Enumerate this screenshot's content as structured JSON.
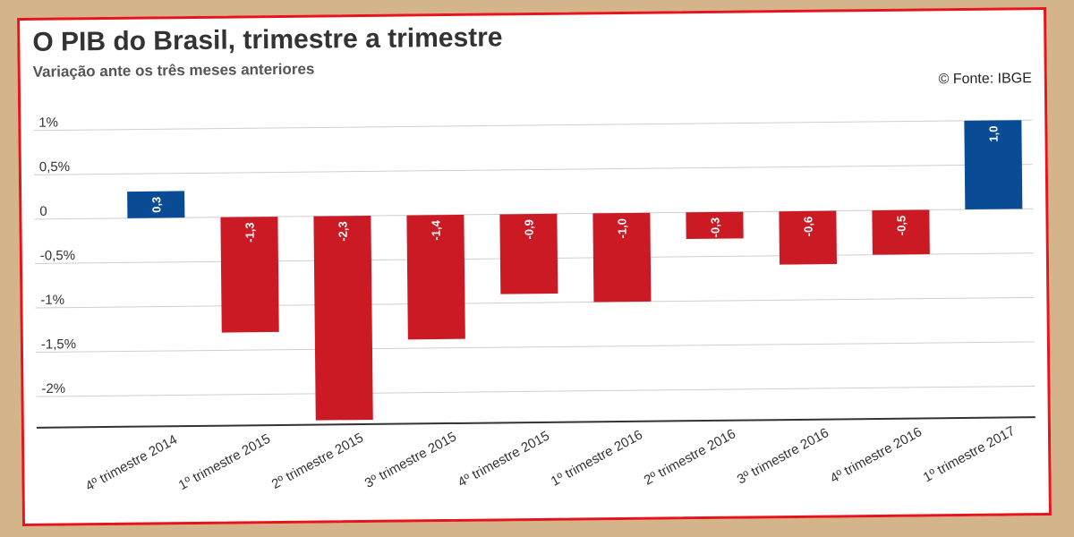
{
  "title": "O PIB do Brasil, trimestre a trimestre",
  "subtitle": "Variação ante os três meses anteriores",
  "source": "© Fonte: IBGE",
  "colors": {
    "positive": "#0a4b96",
    "negative": "#cc1a24",
    "frame_border": "#e8141c",
    "background": "#d4b48a"
  },
  "chart_data": {
    "type": "bar",
    "categories": [
      "4º trimestre 2014",
      "1º trimestre 2015",
      "2º trimestre 2015",
      "3º trimestre 2015",
      "4º trimestre 2015",
      "1º trimestre 2016",
      "2º trimestre 2016",
      "3º trimestre 2016",
      "4º trimestre 2016",
      "1º trimestre 2017"
    ],
    "values": [
      0.3,
      -1.3,
      -2.3,
      -1.4,
      -0.9,
      -1.0,
      -0.3,
      -0.6,
      -0.5,
      1.0
    ],
    "value_labels": [
      "0,3",
      "-1,3",
      "-2,3",
      "-1,4",
      "-0,9",
      "-1,0",
      "-0,3",
      "-0,6",
      "-0,5",
      "1,0"
    ],
    "y_ticks": [
      1,
      0.5,
      0,
      -0.5,
      -1,
      -1.5,
      -2
    ],
    "y_tick_labels": [
      "1%",
      "0,5%",
      "0",
      "-0,5%",
      "-1%",
      "-1,5%",
      "-2%"
    ],
    "ylim": [
      -2.35,
      1.05
    ],
    "grid": true,
    "xlabel": "",
    "ylabel": ""
  }
}
